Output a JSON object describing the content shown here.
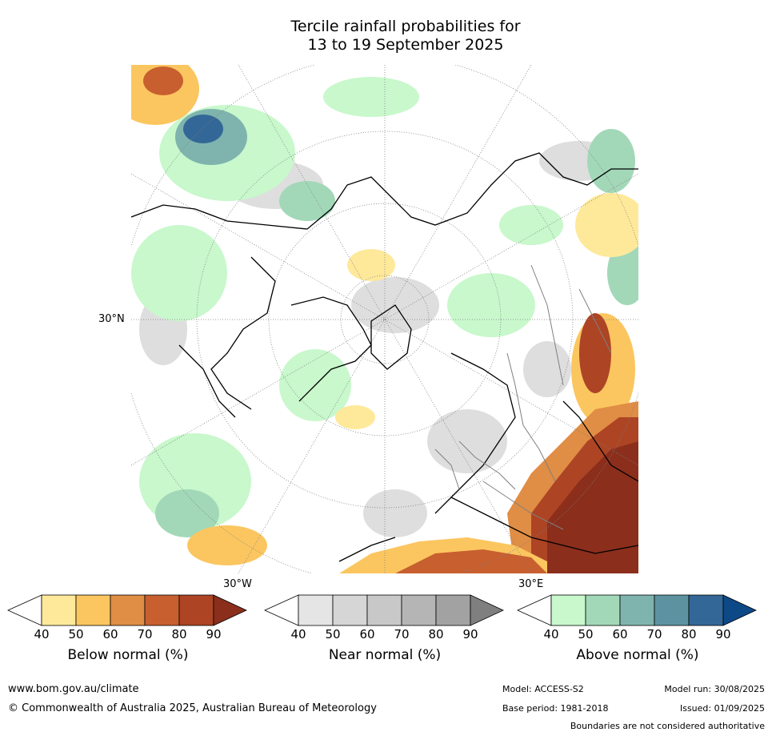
{
  "title": {
    "line1": "Tercile rainfall probabilities for",
    "line2": "13 to 19 September 2025"
  },
  "map": {
    "lat_label": "30°N",
    "lon_labels": [
      "30°W",
      "30°E"
    ],
    "colors": {
      "ocean_fill": "#ffffff",
      "coastline": "#000000",
      "borders": "#808080",
      "graticule": "#808080"
    }
  },
  "colorbars": [
    {
      "title": "Below normal (%)",
      "ticks": [
        "40",
        "50",
        "60",
        "70",
        "80",
        "90"
      ],
      "colors": [
        "#ffffff",
        "#fee99a",
        "#fbc660",
        "#e08d45",
        "#c85f2f",
        "#ad4424",
        "#8b2e1c"
      ]
    },
    {
      "title": "Near normal (%)",
      "ticks": [
        "40",
        "50",
        "60",
        "70",
        "80",
        "90"
      ],
      "colors": [
        "#ffffff",
        "#e5e5e5",
        "#d6d6d6",
        "#c8c8c8",
        "#b5b5b5",
        "#a2a2a2",
        "#7f7f7f"
      ]
    },
    {
      "title": "Above normal (%)",
      "ticks": [
        "40",
        "50",
        "60",
        "70",
        "80",
        "90"
      ],
      "colors": [
        "#ffffff",
        "#c8f8cc",
        "#a2d8b8",
        "#7fb4ae",
        "#5d93a1",
        "#336797",
        "#0e4987"
      ]
    }
  ],
  "footer": {
    "url": "www.bom.gov.au/climate",
    "copyright": "© Commonwealth of Australia 2025, Australian Bureau of Meteorology",
    "model": "Model: ACCESS-S2",
    "base_period": "Base period: 1981-2018",
    "model_run": "Model run: 30/08/2025",
    "issued": "Issued: 01/09/2025",
    "disclaimer": "Boundaries are not considered authoritative"
  }
}
